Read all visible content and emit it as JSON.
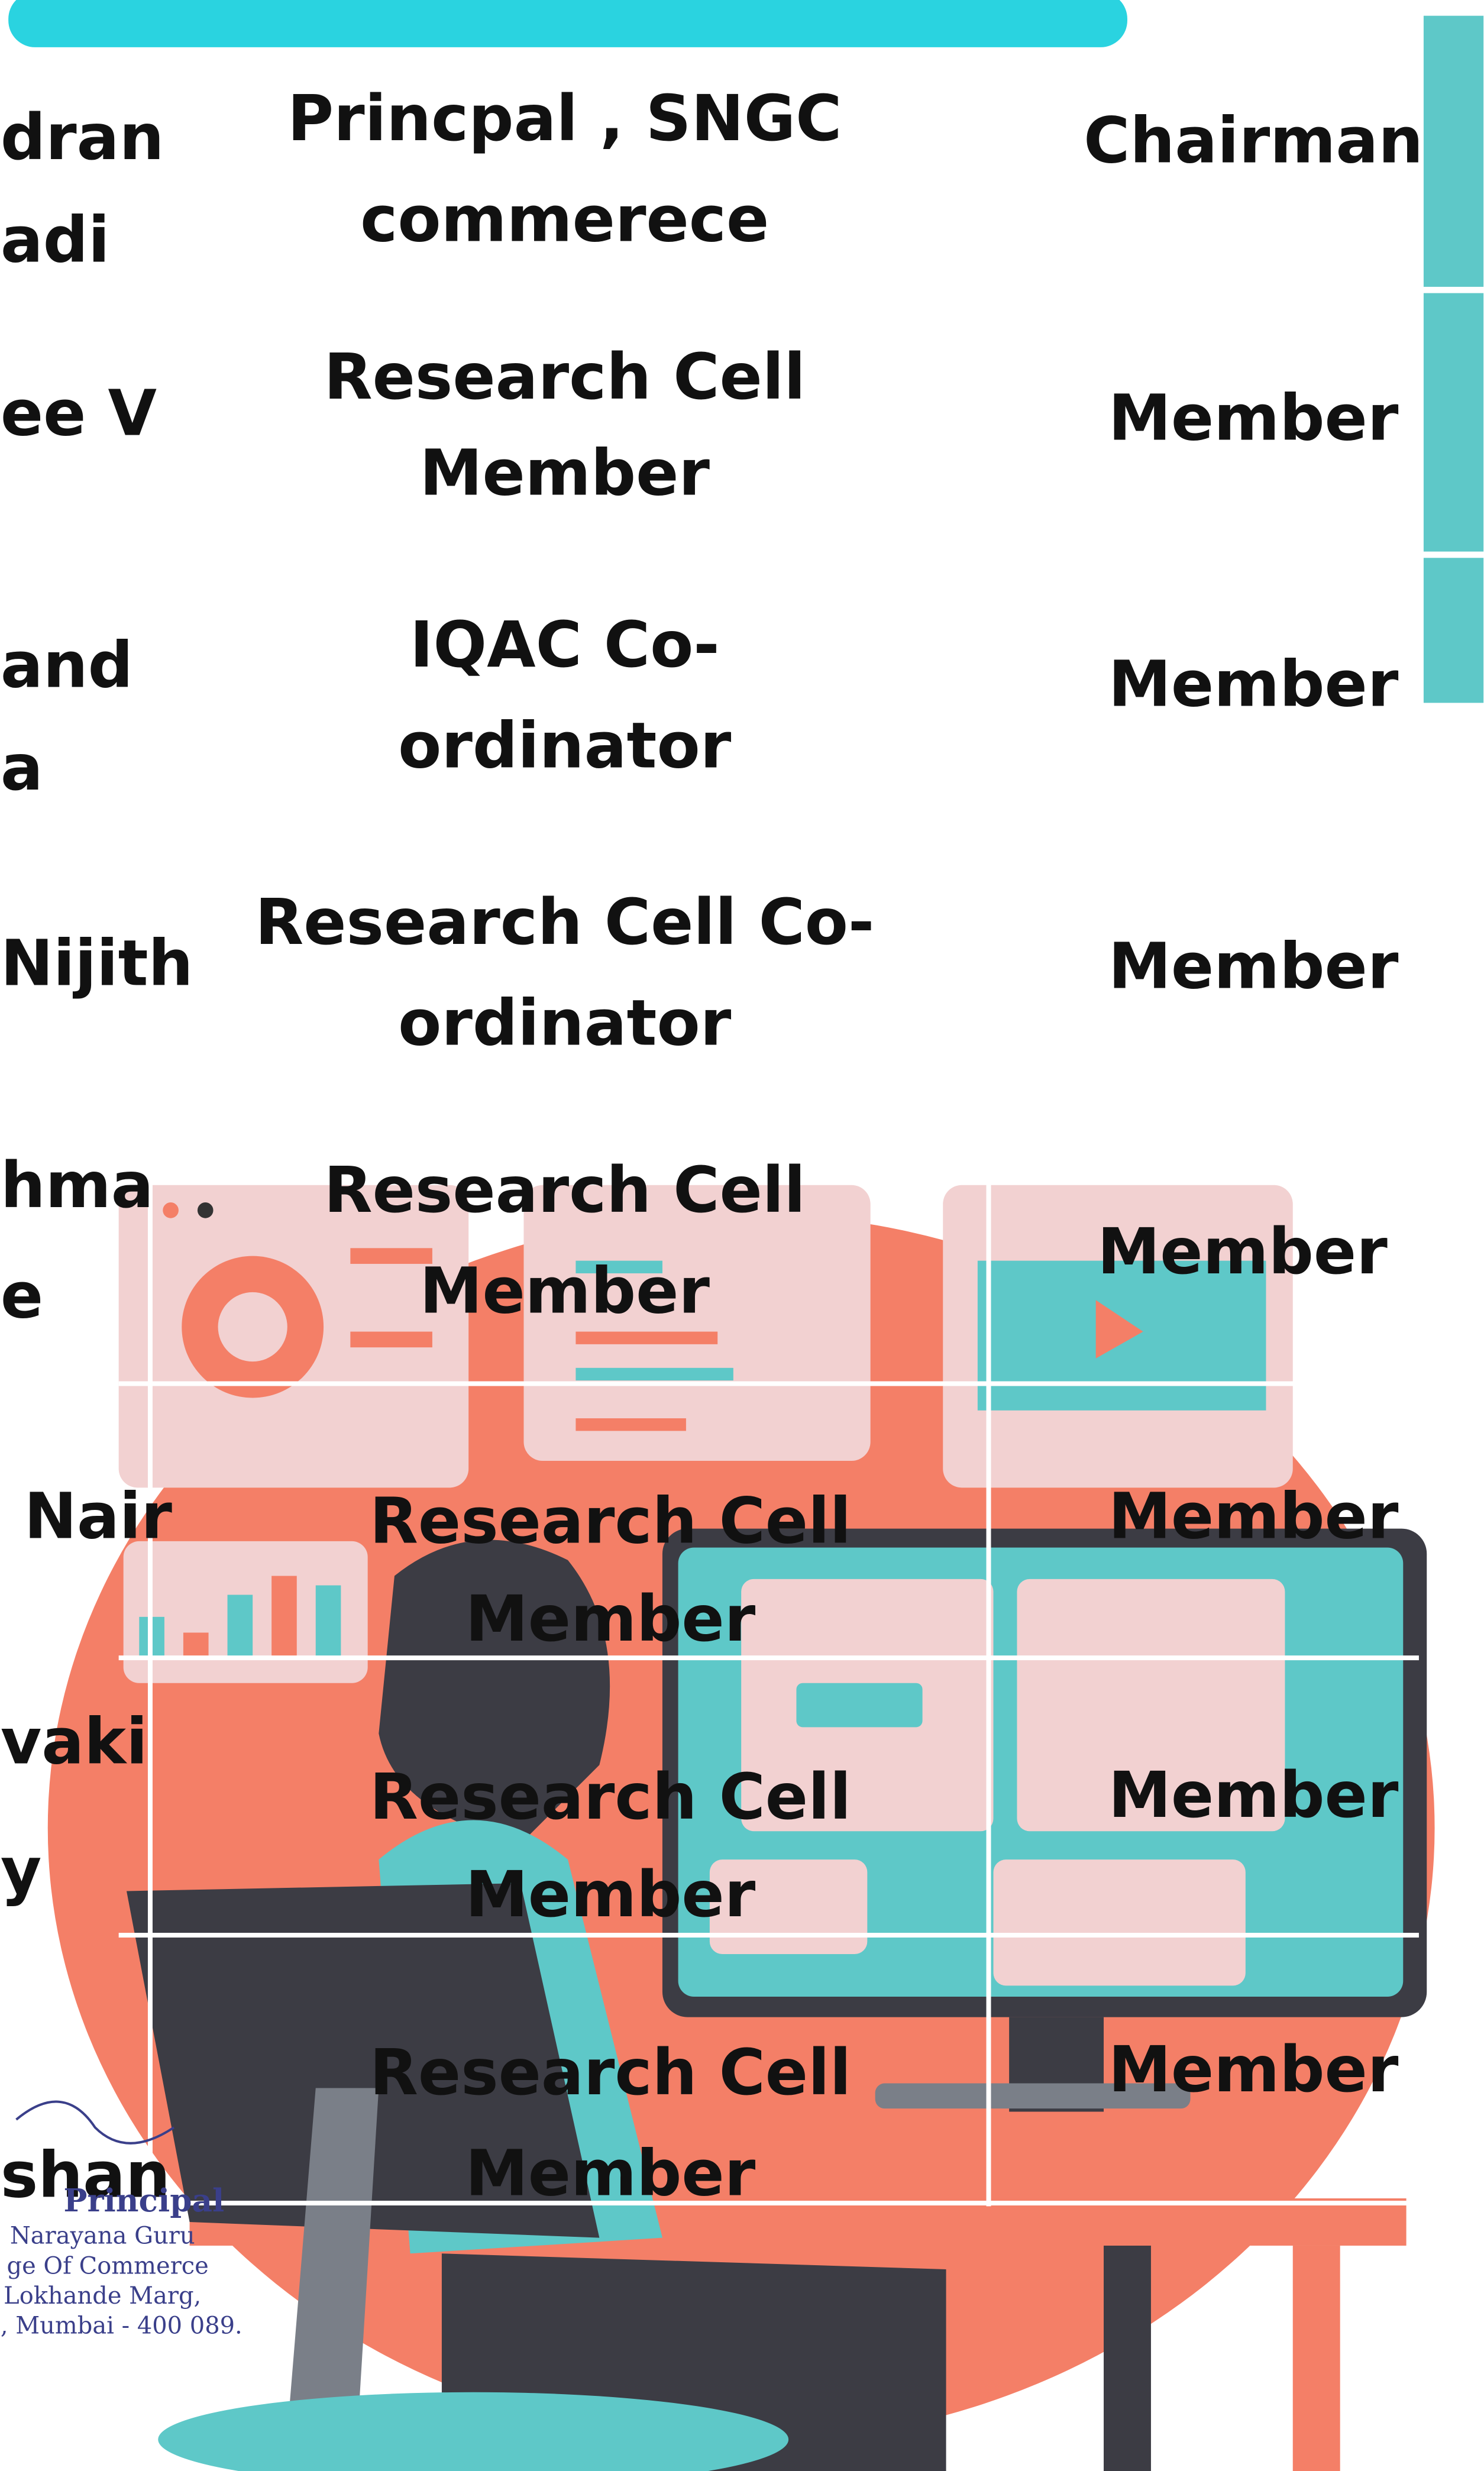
{
  "rows": [
    {
      "name": [
        "dran",
        "adi"
      ],
      "designation": [
        "Princpal , SNGC",
        "commerece"
      ],
      "role": "Chairman"
    },
    {
      "name": [
        "ee V"
      ],
      "designation": [
        "Research Cell",
        "Member"
      ],
      "role": "Member"
    },
    {
      "name": [
        "and",
        "a"
      ],
      "designation": [
        "IQAC Co-",
        "ordinator"
      ],
      "role": "Member"
    },
    {
      "name": [
        "Nijith"
      ],
      "designation": [
        "Research Cell Co-",
        "ordinator"
      ],
      "role": "Member"
    },
    {
      "name": [
        "hma",
        "e"
      ],
      "designation": [
        "Research Cell",
        "Member"
      ],
      "role": "Member"
    },
    {
      "name": [
        "Nair"
      ],
      "designation": [
        "Research Cell",
        "Member"
      ],
      "role": "Member"
    },
    {
      "name": [
        "vaki",
        "y"
      ],
      "designation": [
        "Research Cell",
        "Member"
      ],
      "role": "Member"
    },
    {
      "name": [
        "shan"
      ],
      "designation": [
        "Research Cell",
        "Member"
      ],
      "role": "Member"
    }
  ],
  "stamp": {
    "title": "Principal",
    "lines": [
      "Narayana Guru",
      "ge Of Commerce",
      "Lokhande Marg,",
      ", Mumbai - 400 089."
    ]
  }
}
